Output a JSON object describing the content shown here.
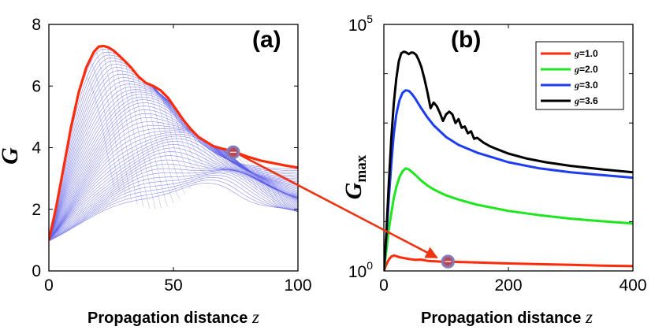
{
  "chart_data": [
    {
      "type": "line",
      "panel_label": "(a)",
      "ylabel": "G",
      "xlabel": "Propagation distance",
      "xlabel_variable": "z",
      "xlim": [
        0,
        100
      ],
      "ylim": [
        0,
        8
      ],
      "x_ticks": [
        0,
        50,
        100
      ],
      "y_ticks": [
        0,
        2,
        4,
        6,
        8
      ],
      "grid": false,
      "envelope_color": "#ff2a0a",
      "family_color": "#5a5ae6",
      "envelope": {
        "x": [
          0,
          3,
          6,
          9,
          12,
          15,
          18,
          20,
          22,
          24,
          26,
          28,
          30,
          33,
          36,
          39,
          42,
          45,
          48,
          51,
          54,
          57,
          60,
          63,
          66,
          69,
          72,
          75,
          80,
          85,
          90,
          95,
          100
        ],
        "y": [
          1.0,
          2.1,
          3.4,
          4.7,
          5.8,
          6.6,
          7.1,
          7.28,
          7.3,
          7.25,
          7.15,
          7.0,
          6.85,
          6.6,
          6.3,
          6.1,
          6.0,
          5.85,
          5.6,
          5.25,
          4.9,
          4.6,
          4.35,
          4.2,
          4.05,
          3.98,
          3.92,
          3.85,
          3.7,
          3.58,
          3.5,
          3.42,
          3.35
        ]
      },
      "family_count": 46,
      "marker": {
        "x": 74,
        "y": 3.85
      },
      "arrow_to_panel": "b"
    },
    {
      "type": "line",
      "panel_label": "(b)",
      "ylabel": "G",
      "ylabel_subscript": "max",
      "xlabel": "Propagation distance",
      "xlabel_variable": "z",
      "xlim": [
        0,
        400
      ],
      "y_scale": "log",
      "ylim": [
        1,
        100000
      ],
      "x_ticks": [
        0,
        200,
        400
      ],
      "y_ticks": [
        {
          "base": "10",
          "exp": "0",
          "value": 1
        },
        {
          "base": "10",
          "exp": "5",
          "value": 100000
        }
      ],
      "grid": false,
      "legend_position": "top-right",
      "legend_prefix": "g",
      "series": [
        {
          "name": "=1.0",
          "color": "#ff2a0a",
          "x": [
            0,
            4,
            8,
            12,
            16,
            20,
            25,
            30,
            40,
            50,
            60,
            70,
            80,
            90,
            100,
            120,
            150,
            200,
            250,
            300,
            350,
            400
          ],
          "y": [
            1.0,
            1.35,
            1.7,
            1.95,
            2.05,
            2.0,
            1.9,
            1.85,
            1.75,
            1.68,
            1.7,
            1.6,
            1.58,
            1.55,
            1.55,
            1.52,
            1.48,
            1.42,
            1.37,
            1.33,
            1.28,
            1.25
          ]
        },
        {
          "name": "=2.0",
          "color": "#1ee61e",
          "x": [
            0,
            4,
            8,
            12,
            16,
            20,
            25,
            30,
            35,
            40,
            50,
            60,
            70,
            80,
            100,
            120,
            150,
            200,
            250,
            300,
            350,
            400
          ],
          "y": [
            1.0,
            2.6,
            7.0,
            15,
            30,
            50,
            80,
            105,
            120,
            115,
            90,
            68,
            54,
            45,
            34,
            28,
            22,
            16.5,
            13.5,
            11.5,
            10.2,
            9.2
          ]
        },
        {
          "name": "=3.0",
          "color": "#1e3cf0",
          "x": [
            0,
            4,
            8,
            12,
            16,
            20,
            25,
            30,
            35,
            40,
            45,
            50,
            60,
            70,
            80,
            100,
            120,
            150,
            200,
            250,
            300,
            350,
            400
          ],
          "y": [
            1.0,
            5,
            30,
            150,
            600,
            1500,
            2900,
            4100,
            4600,
            4500,
            3900,
            3200,
            2000,
            1300,
            900,
            520,
            360,
            250,
            160,
            120,
            100,
            88,
            78
          ]
        },
        {
          "name": "=3.6",
          "color": "#000000",
          "x": [
            0,
            4,
            8,
            12,
            16,
            20,
            24,
            28,
            32,
            36,
            40,
            44,
            48,
            52,
            56,
            60,
            65,
            70,
            75,
            80,
            85,
            90,
            95,
            100,
            105,
            110,
            115,
            120,
            125,
            130,
            135,
            140,
            145,
            150,
            160,
            170,
            180,
            200,
            230,
            260,
            300,
            350,
            400
          ],
          "y": [
            1.0,
            6,
            60,
            500,
            2500,
            8000,
            18000,
            26000,
            28000,
            27000,
            25000,
            27000,
            26500,
            24000,
            19000,
            14000,
            8000,
            4200,
            2000,
            2600,
            2200,
            1600,
            1100,
            1500,
            1700,
            1500,
            1000,
            1200,
            800,
            850,
            620,
            680,
            480,
            500,
            400,
            340,
            300,
            240,
            190,
            160,
            135,
            115,
            100
          ]
        }
      ],
      "marker": {
        "x": 103,
        "y": 1.55
      }
    }
  ]
}
